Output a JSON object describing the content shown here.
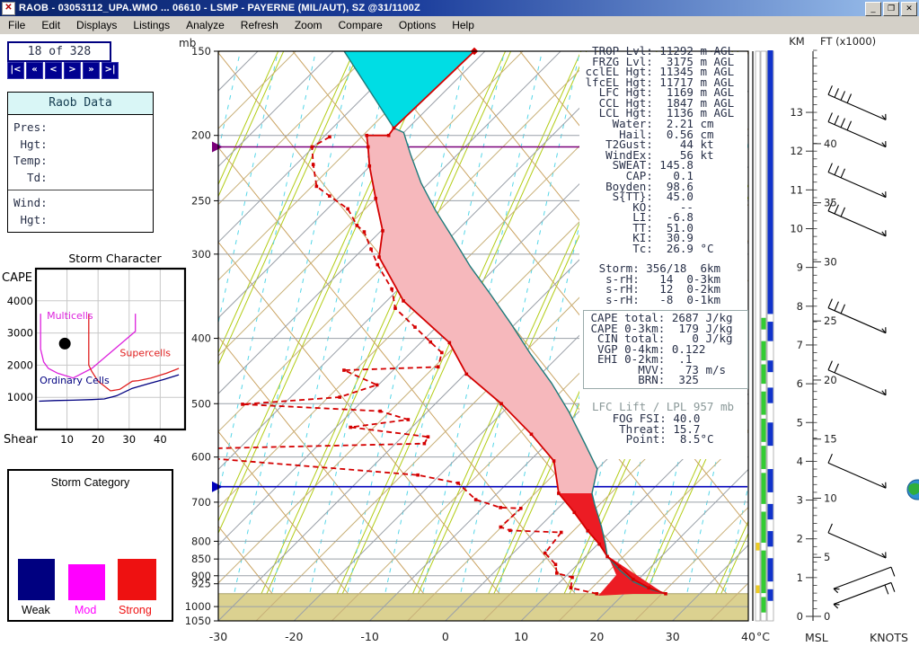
{
  "window": {
    "title": "RAOB  -  03053112_UPA.WMO  ...  06610 - LSMP - PAYERNE (MIL/AUT), SZ   @31/1100Z",
    "controls": {
      "minimize": "_",
      "restore": "❐",
      "close": "✕"
    },
    "icon_glyph": "✕"
  },
  "menu": {
    "items": [
      "File",
      "Edit",
      "Displays",
      "Listings",
      "Analyze",
      "Refresh",
      "Zoom",
      "Compare",
      "Options",
      "Help"
    ]
  },
  "nav": {
    "record": "18 of 328",
    "buttons": [
      "|<",
      "«",
      "<",
      ">",
      "»",
      ">|"
    ]
  },
  "raob_panel": {
    "title": "Raob Data",
    "rows1": [
      "Pres:",
      " Hgt:",
      "Temp:",
      "  Td:"
    ],
    "rows2": [
      "Wind:",
      " Hgt:"
    ]
  },
  "storm_category": {
    "title": "Storm Category",
    "items": [
      {
        "label": "Weak",
        "color": "#000080"
      },
      {
        "label": "Mod",
        "color": "#ff00ff"
      },
      {
        "label": "Strong",
        "color": "#ee1111"
      }
    ]
  },
  "indices": {
    "block1": [
      "  TROP Lvl: 11292 m AGL",
      "  FRZG Lvl:  3175 m AGL",
      " cclEL Hgt: 11345 m AGL",
      " lfcEL Hgt: 11717 m AGL",
      "   LFC Hgt:  1169 m AGL",
      "   CCL Hgt:  1847 m AGL",
      "   LCL Hgt:  1136 m AGL",
      "     Water:  2.21 cm",
      "      Hail:  0.56 cm",
      "    T2Gust:    44 kt",
      "    WindEx:    56 kt",
      "     SWEAT: 145.8",
      "       CAP:   0.1",
      "    Boyden:  98.6",
      "     S{TT}:  45.0",
      "        KO:    --",
      "        LI:  -6.8",
      "        TT:  51.0",
      "        KI:  30.9",
      "        Tc:  26.9 °C"
    ],
    "storm_block": [
      "   Storm: 356/18  6km",
      "    s-rH:   14  0-3km",
      "    s-rH:   12  0-2km",
      "    s-rH:   -8  0-1km"
    ],
    "cape_box": [
      " CAPE total: 2687 J/kg",
      " CAPE 0-3km:  179 J/kg",
      "  CIN total:    0 J/kg",
      "  VGP 0-4km: 0.122",
      "  EHI 0-2km:  .1",
      "        MVV:   73 m/s",
      "        BRN:  325"
    ],
    "lfc_note": "LFC Lift / LPL 957 mb",
    "fog_block": [
      "     FOG FSI: 40.0",
      "      Threat: 15.7",
      "       Point:  8.5°C"
    ]
  },
  "chart_data": [
    {
      "type": "line",
      "title": "Storm Character",
      "xlabel": "Shear",
      "ylabel": "CAPE",
      "xlim": [
        0,
        48
      ],
      "ylim": [
        0,
        5000
      ],
      "xticks": [
        10,
        20,
        30,
        40
      ],
      "yticks": [
        1000,
        2000,
        3000,
        4000
      ],
      "grid": true,
      "series": [
        {
          "name": "Multicells",
          "color": "#dd22dd",
          "points": [
            [
              1.5,
              3600
            ],
            [
              1.5,
              2500
            ],
            [
              2.5,
              2100
            ],
            [
              4,
              1900
            ],
            [
              7,
              1750
            ],
            [
              12,
              1600
            ],
            [
              18,
              1900
            ],
            [
              32,
              3050
            ],
            [
              32,
              3600
            ]
          ]
        },
        {
          "name": "Supercells",
          "color": "#e02020",
          "points": [
            [
              17,
              3600
            ],
            [
              17,
              2000
            ],
            [
              18,
              1800
            ],
            [
              20,
              1500
            ],
            [
              24,
              1200
            ],
            [
              27,
              1250
            ],
            [
              31,
              1500
            ],
            [
              33,
              1520
            ],
            [
              37,
              1600
            ],
            [
              42,
              1750
            ],
            [
              46,
              1900
            ]
          ]
        },
        {
          "name": "Ordinary Cells",
          "color": "#000080",
          "points": [
            [
              1,
              880
            ],
            [
              6,
              900
            ],
            [
              12,
              910
            ],
            [
              18,
              930
            ],
            [
              22,
              950
            ],
            [
              26,
              1050
            ],
            [
              31,
              1280
            ],
            [
              36,
              1420
            ],
            [
              41,
              1550
            ],
            [
              46,
              1700
            ]
          ]
        }
      ],
      "labels": [
        {
          "text": "Multicells",
          "x": 3.5,
          "y": 3430,
          "color": "#dd22dd"
        },
        {
          "text": "Supercells",
          "x": 27.0,
          "y": 2280,
          "color": "#e02020"
        },
        {
          "text": "Ordinary Cells",
          "x": 1.2,
          "y": 1420,
          "color": "#000080"
        }
      ],
      "marker": {
        "x": 9.3,
        "y": 2670
      }
    },
    {
      "type": "skewt",
      "ylabel": "mb",
      "xlabel_unit": "°C",
      "pressure_labels": [
        150,
        200,
        250,
        300,
        400,
        500,
        600,
        700,
        800,
        850,
        900,
        925,
        1000,
        1050
      ],
      "temp_ticks": [
        -30,
        -20,
        -10,
        0,
        10,
        20,
        30,
        40
      ],
      "plim": [
        150,
        1050
      ],
      "tlim": [
        -30,
        40
      ],
      "tropopause_p": 208,
      "freezing_p": 664,
      "surface_p": 957,
      "temperature": [
        [
          150,
          -71.4
        ],
        [
          195,
          -71.9
        ],
        [
          200,
          -71.6
        ],
        [
          200,
          -74.5
        ],
        [
          208,
          -72.8
        ],
        [
          222,
          -70.1
        ],
        [
          248,
          -65.0
        ],
        [
          277,
          -59.8
        ],
        [
          303,
          -56.8
        ],
        [
          352,
          -47.8
        ],
        [
          406,
          -36.2
        ],
        [
          452,
          -29.8
        ],
        [
          500,
          -21.3
        ],
        [
          555,
          -13.3
        ],
        [
          608,
          -6.8
        ],
        [
          679,
          -1.9
        ],
        [
          725,
          2.7
        ],
        [
          772,
          6.9
        ],
        [
          808,
          10.2
        ],
        [
          843,
          12.9
        ],
        [
          872,
          15.8
        ],
        [
          911,
          19.3
        ],
        [
          938,
          22.5
        ],
        [
          957,
          25.5
        ]
      ],
      "dewpoint": [
        [
          201,
          -79.2
        ],
        [
          208,
          -80.2
        ],
        [
          221,
          -77.7
        ],
        [
          238,
          -74.4
        ],
        [
          246,
          -71.4
        ],
        [
          257,
          -67.3
        ],
        [
          272,
          -63.9
        ],
        [
          278,
          -62.1
        ],
        [
          295,
          -58.9
        ],
        [
          311,
          -56.0
        ],
        [
          338,
          -50.9
        ],
        [
          361,
          -47.9
        ],
        [
          385,
          -42.8
        ],
        [
          405,
          -38.8
        ],
        [
          420,
          -35.9
        ],
        [
          441,
          -34.5
        ],
        [
          446,
          -46.5
        ],
        [
          469,
          -40.2
        ],
        [
          489,
          -43.5
        ],
        [
          501,
          -55.4
        ],
        [
          513,
          -36.3
        ],
        [
          528,
          -31.5
        ],
        [
          542,
          -38.1
        ],
        [
          560,
          -26.6
        ],
        [
          573,
          -26.2
        ],
        [
          583,
          -55.0
        ],
        [
          601,
          -54.0
        ],
        [
          638,
          -22.9
        ],
        [
          656,
          -16.5
        ],
        [
          694,
          -12.0
        ],
        [
          713,
          -7.7
        ],
        [
          715,
          -4.9
        ],
        [
          762,
          -5.1
        ],
        [
          771,
          -3.4
        ],
        [
          776,
          3.6
        ],
        [
          833,
          4.2
        ],
        [
          866,
          7.1
        ],
        [
          892,
          8.4
        ],
        [
          905,
          11.0
        ],
        [
          938,
          12.2
        ],
        [
          957,
          16.4
        ]
      ],
      "parcel": [
        [
          150,
          -88.6
        ],
        [
          195,
          -71.9
        ],
        [
          198,
          -70.0
        ],
        [
          213,
          -66.3
        ],
        [
          235,
          -61.1
        ],
        [
          258,
          -55.6
        ],
        [
          282,
          -50.0
        ],
        [
          313,
          -43.5
        ],
        [
          345,
          -37.0
        ],
        [
          381,
          -30.5
        ],
        [
          422,
          -24.0
        ],
        [
          466,
          -17.4
        ],
        [
          515,
          -11.2
        ],
        [
          571,
          -5.2
        ],
        [
          625,
          0.0
        ],
        [
          679,
          2.5
        ],
        [
          705,
          4.3
        ],
        [
          760,
          8.1
        ],
        [
          808,
          11.0
        ],
        [
          843,
          12.9
        ],
        [
          884,
          16.4
        ],
        [
          919,
          19.7
        ],
        [
          944,
          23.1
        ],
        [
          957,
          25.5
        ]
      ],
      "el_p": 195,
      "fill_colors": {
        "above_el": "#00dde4",
        "cape": "#f6b8bc",
        "cape_low": "#ec1c24",
        "ground": "#dbd190"
      }
    },
    {
      "type": "profile",
      "km_header": "KM",
      "ft_header": "FT (x1000)",
      "msl_label": "MSL",
      "knots_label": "KNOTS",
      "km_ticks": [
        0,
        1,
        2,
        3,
        4,
        5,
        6,
        7,
        8,
        9,
        10,
        11,
        12,
        13
      ],
      "ft_ticks": [
        0,
        5,
        10,
        15,
        20,
        25,
        30,
        35,
        40
      ],
      "barbs": [
        {
          "km": 12.9,
          "ticks": 4,
          "dir": 1
        },
        {
          "km": 12.2,
          "ticks": 4,
          "dir": 1
        },
        {
          "km": 10.9,
          "ticks": 3,
          "dir": 1
        },
        {
          "km": 9.9,
          "ticks": 3,
          "dir": 1
        },
        {
          "km": 7.4,
          "ticks": 3,
          "dir": 1
        },
        {
          "km": 5.8,
          "ticks": 2,
          "dir": 1
        },
        {
          "km": 3.4,
          "ticks": 1,
          "dir": 1
        },
        {
          "km": 1.6,
          "ticks": 1,
          "dir": 1
        },
        {
          "km": 0.9,
          "ticks": 1,
          "dir": -1
        },
        {
          "km": 0.5,
          "ticks": 2,
          "dir": -1
        }
      ],
      "layers": {
        "blue_solid": [
          7.8,
          14.6
        ],
        "blue": [
          [
            7.6,
            7.1
          ],
          [
            6.6,
            6.3
          ],
          [
            5.9,
            5.5
          ],
          [
            5.0,
            4.4
          ],
          [
            3.8,
            3.2
          ],
          [
            2.9,
            2.5
          ],
          [
            2.2,
            1.8
          ],
          [
            1.5,
            0.9
          ],
          [
            0.7,
            0.4
          ]
        ],
        "green": [
          [
            7.7,
            7.4
          ],
          [
            7.1,
            6.6
          ],
          [
            6.5,
            6.0
          ],
          [
            5.8,
            5.2
          ],
          [
            5.1,
            4.5
          ],
          [
            4.4,
            3.8
          ],
          [
            3.7,
            2.9
          ],
          [
            2.7,
            1.9
          ],
          [
            1.7,
            0.6
          ],
          [
            0.5,
            0.1
          ]
        ],
        "yellow": [
          [
            1.9,
            1.7
          ],
          [
            0.8,
            0.6
          ]
        ]
      },
      "colors": {
        "blue": "#1133cc",
        "green": "#33cc33",
        "yellow": "#eecc22"
      }
    }
  ]
}
